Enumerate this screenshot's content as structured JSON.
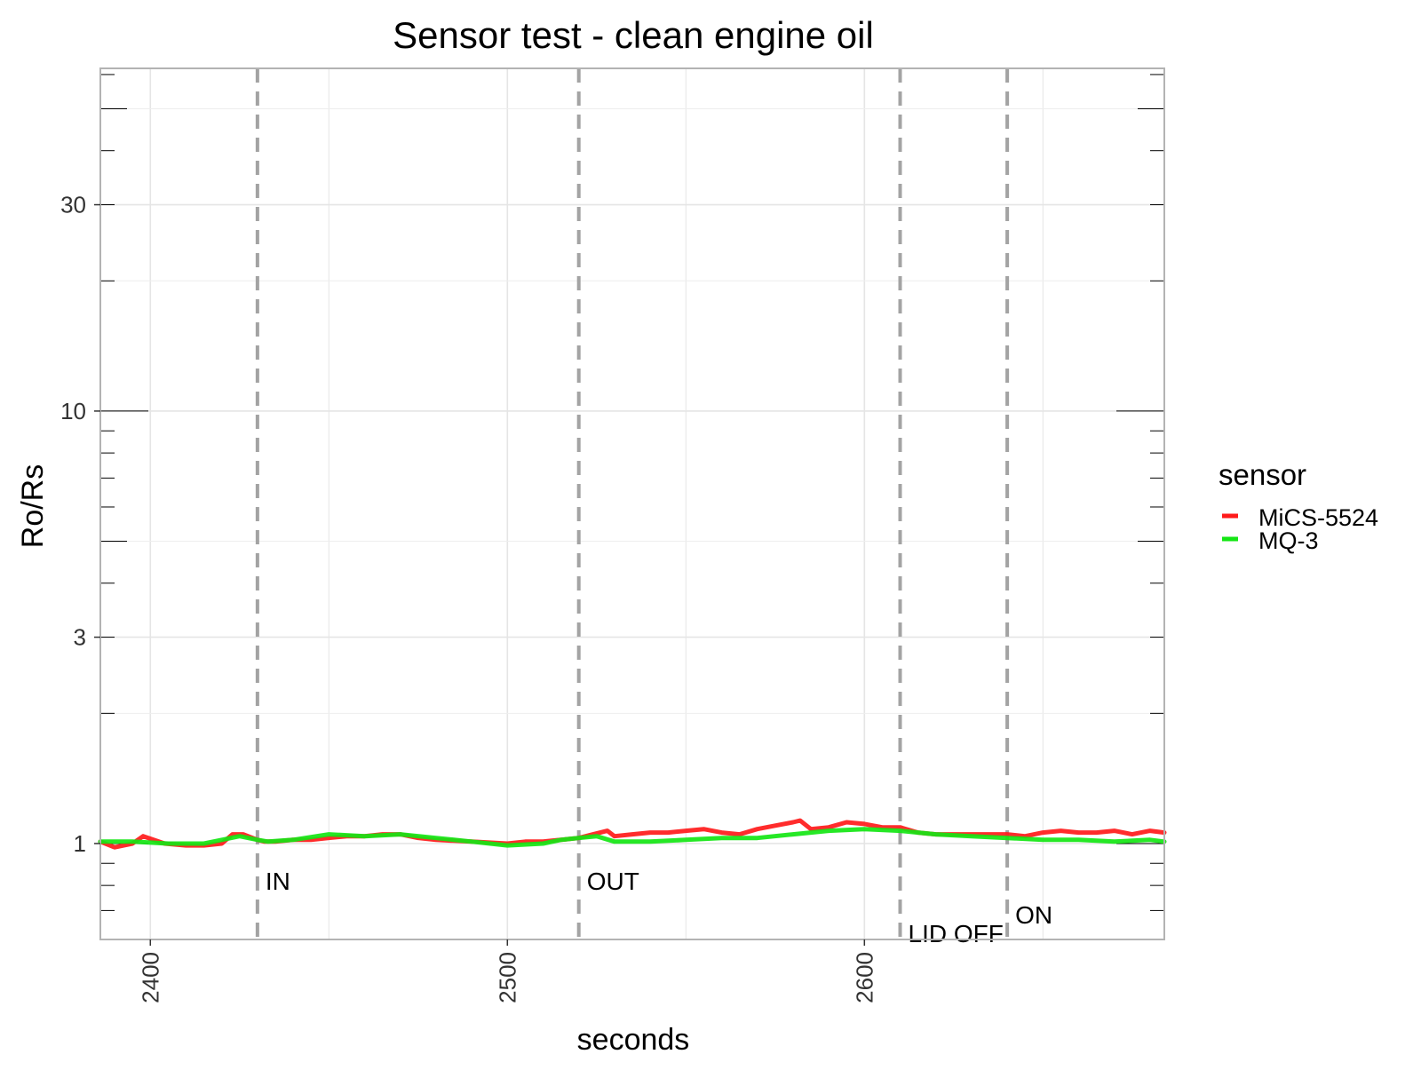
{
  "chart_data": {
    "type": "line",
    "title": "Sensor test - clean engine oil",
    "xlabel": "seconds",
    "ylabel": "Ro/Rs",
    "xlim": [
      2386,
      2684
    ],
    "ylim": [
      0.6,
      62
    ],
    "yscale": "log",
    "x_ticks": [
      2400,
      2500,
      2600
    ],
    "y_ticks": [
      1,
      3,
      10,
      30
    ],
    "grid": true,
    "legend": {
      "title": "sensor",
      "position": "right",
      "entries": [
        {
          "label": "MiCS-5524",
          "color": "#ff1a1a"
        },
        {
          "label": "MQ-3",
          "color": "#14e614"
        }
      ]
    },
    "events": [
      {
        "x": 2430,
        "label": "IN",
        "label_y": 0.82
      },
      {
        "x": 2520,
        "label": "OUT",
        "label_y": 0.82
      },
      {
        "x": 2610,
        "label": "LID OFF",
        "label_y": 0.62
      },
      {
        "x": 2640,
        "label": "ON",
        "label_y": 0.685
      }
    ],
    "series": [
      {
        "name": "MiCS-5524",
        "color": "#ff1a1a",
        "x": [
          2386,
          2390,
          2395,
          2398,
          2404,
          2410,
          2415,
          2420,
          2423,
          2426,
          2430,
          2432,
          2435,
          2440,
          2445,
          2450,
          2455,
          2460,
          2465,
          2470,
          2475,
          2480,
          2490,
          2500,
          2505,
          2510,
          2515,
          2520,
          2524,
          2528,
          2530,
          2535,
          2540,
          2545,
          2550,
          2555,
          2560,
          2565,
          2570,
          2575,
          2580,
          2582,
          2585,
          2590,
          2595,
          2600,
          2605,
          2610,
          2615,
          2620,
          2625,
          2630,
          2635,
          2640,
          2645,
          2650,
          2655,
          2660,
          2665,
          2670,
          2675,
          2680,
          2684
        ],
        "values": [
          1.01,
          0.98,
          1.0,
          1.04,
          1.0,
          0.99,
          0.99,
          1.0,
          1.05,
          1.05,
          1.02,
          1.01,
          1.01,
          1.02,
          1.02,
          1.03,
          1.04,
          1.04,
          1.05,
          1.05,
          1.03,
          1.02,
          1.01,
          1.0,
          1.01,
          1.01,
          1.02,
          1.03,
          1.05,
          1.07,
          1.04,
          1.05,
          1.06,
          1.06,
          1.07,
          1.08,
          1.06,
          1.05,
          1.08,
          1.1,
          1.12,
          1.13,
          1.08,
          1.09,
          1.12,
          1.11,
          1.09,
          1.09,
          1.06,
          1.05,
          1.05,
          1.05,
          1.05,
          1.05,
          1.04,
          1.06,
          1.07,
          1.06,
          1.06,
          1.07,
          1.05,
          1.07,
          1.06
        ]
      },
      {
        "name": "MQ-3",
        "color": "#14e614",
        "x": [
          2386,
          2395,
          2405,
          2415,
          2425,
          2430,
          2433,
          2440,
          2450,
          2460,
          2470,
          2480,
          2490,
          2500,
          2510,
          2515,
          2520,
          2525,
          2530,
          2540,
          2550,
          2560,
          2570,
          2580,
          2590,
          2600,
          2610,
          2620,
          2630,
          2640,
          2650,
          2660,
          2670,
          2680,
          2684
        ],
        "values": [
          1.01,
          1.01,
          1.0,
          1.0,
          1.04,
          1.02,
          1.01,
          1.02,
          1.05,
          1.04,
          1.05,
          1.03,
          1.01,
          0.99,
          1.0,
          1.02,
          1.03,
          1.04,
          1.01,
          1.01,
          1.02,
          1.03,
          1.03,
          1.05,
          1.07,
          1.08,
          1.07,
          1.05,
          1.04,
          1.03,
          1.02,
          1.02,
          1.01,
          1.02,
          1.01
        ]
      }
    ]
  }
}
